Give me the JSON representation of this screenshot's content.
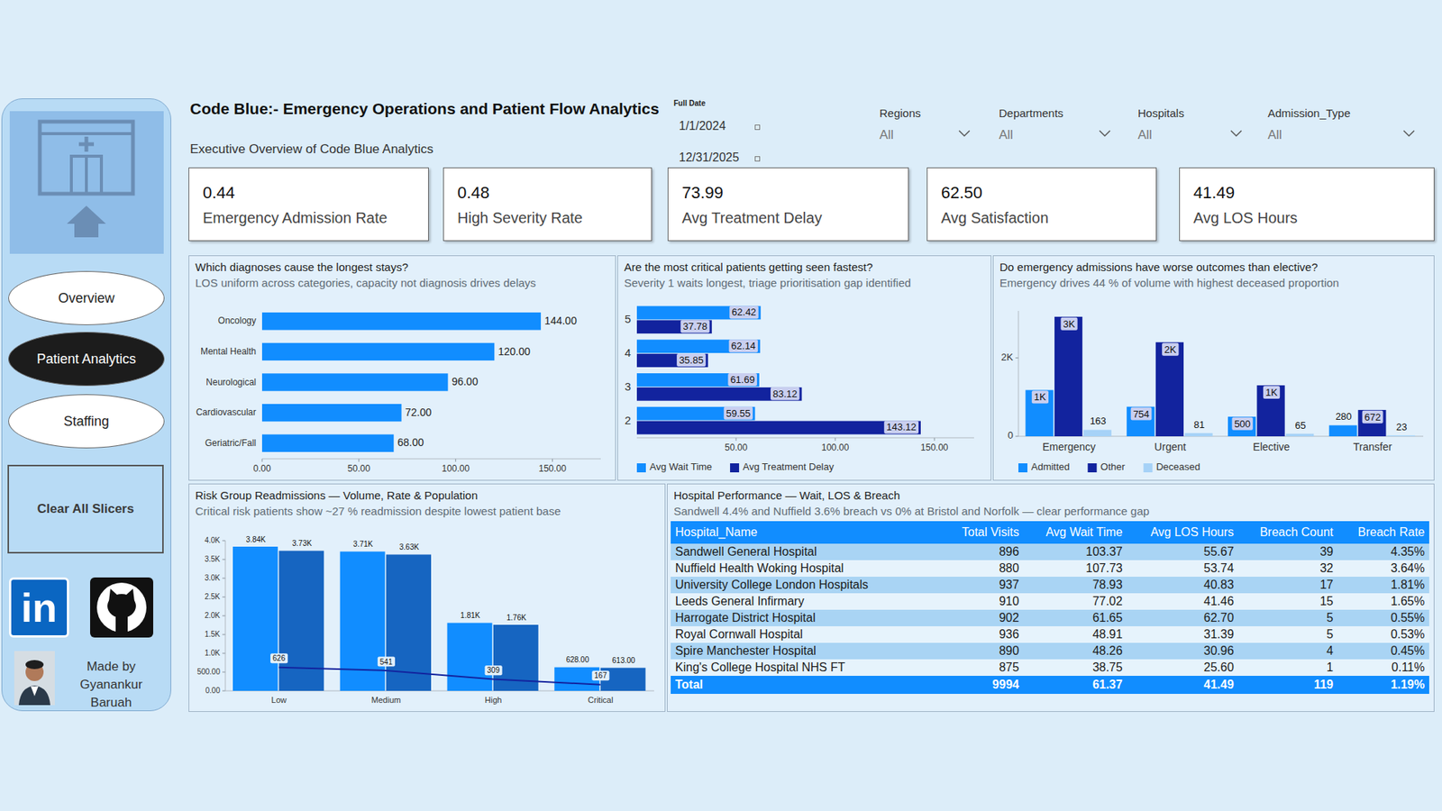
{
  "header": {
    "title": "Code Blue:- Emergency Operations and Patient Flow Analytics",
    "subtitle": "Executive Overview of Code Blue Analytics"
  },
  "navigation": {
    "buttons": [
      "Overview",
      "Patient Analytics",
      "Staffing"
    ],
    "active": 1,
    "clear_button": "Clear All Slicers",
    "linkedin_label": "in",
    "credit": "Made by Gyanankur Baruah"
  },
  "date_filter": {
    "label": "Full Date",
    "start": "1/1/2024",
    "end": "12/31/2025"
  },
  "slicers": [
    {
      "label": "Regions",
      "value": "All"
    },
    {
      "label": "Departments",
      "value": "All"
    },
    {
      "label": "Hospitals",
      "value": "All"
    },
    {
      "label": "Admission_Type",
      "value": "All"
    }
  ],
  "kpis": [
    {
      "value": "0.44",
      "label": "Emergency Admission Rate"
    },
    {
      "value": "0.48",
      "label": "High Severity Rate"
    },
    {
      "value": "73.99",
      "label": "Avg Treatment Delay"
    },
    {
      "value": "62.50",
      "label": "Avg Satisfaction"
    },
    {
      "value": "41.49",
      "label": "Avg LOS Hours"
    }
  ],
  "chart_data": [
    {
      "type": "bar",
      "orientation": "horizontal",
      "title": "Which diagnoses cause the longest stays?",
      "subtitle": "LOS uniform across categories, capacity not diagnosis drives delays",
      "categories": [
        "Oncology",
        "Mental Health",
        "Neurological",
        "Cardiovascular",
        "Geriatric/Fall"
      ],
      "values": [
        144,
        120,
        96,
        72,
        68
      ],
      "value_labels": [
        "144.00",
        "120.00",
        "96.00",
        "72.00",
        "68.00"
      ],
      "color": "#118dff",
      "xlim": [
        0,
        175
      ],
      "xticks": [
        {
          "value": 0,
          "label": "0.00"
        },
        {
          "value": 50,
          "label": "50.00"
        },
        {
          "value": 100,
          "label": "100.00"
        },
        {
          "value": 150,
          "label": "150.00"
        }
      ],
      "grid": false,
      "data_labels": true
    },
    {
      "type": "bar",
      "orientation": "horizontal",
      "title": "Are the most critical patients getting seen fastest?",
      "subtitle": "Severity 1 waits longest, triage prioritisation gap identified",
      "categories": [
        "5",
        "4",
        "3",
        "2"
      ],
      "series": [
        {
          "name": "Avg Wait Time",
          "color": "#118dff",
          "values": [
            62.42,
            62.14,
            61.69,
            59.55
          ]
        },
        {
          "name": "Avg Treatment Delay",
          "color": "#12239e",
          "values": [
            37.78,
            35.85,
            83.12,
            143.12
          ]
        }
      ],
      "xlim": [
        0,
        170
      ],
      "xticks": [
        {
          "value": 50,
          "label": "50.00"
        },
        {
          "value": 100,
          "label": "100.00"
        },
        {
          "value": 150,
          "label": "150.00"
        }
      ],
      "grid": false,
      "legend": "bottom",
      "data_labels": true
    },
    {
      "type": "bar",
      "title": "Do emergency admissions have worse outcomes than elective?",
      "subtitle": "Emergency drives 44 % of volume with highest deceased proportion",
      "categories": [
        "Emergency",
        "Urgent",
        "Elective",
        "Transfer"
      ],
      "series": [
        {
          "name": "Admitted",
          "color": "#118dff",
          "values": [
            1180,
            754,
            500,
            280
          ],
          "value_labels": [
            "1K",
            "754",
            "500",
            "280"
          ]
        },
        {
          "name": "Other",
          "color": "#12239e",
          "values": [
            3050,
            2400,
            1300,
            672
          ],
          "value_labels": [
            "3K",
            "2K",
            "1K",
            "672"
          ]
        },
        {
          "name": "Deceased",
          "color": "#a6d2f7",
          "values": [
            163,
            81,
            65,
            23
          ]
        }
      ],
      "ylim": [
        0,
        3200
      ],
      "yticks": [
        0,
        {
          "value": 2000,
          "label": "2K"
        }
      ],
      "grid": false,
      "legend": "bottom",
      "data_labels": true
    },
    {
      "type": "bar",
      "title": "Risk Group Readmissions — Volume, Rate & Population",
      "subtitle": "Critical risk patients show ~27 % readmission despite lowest patient base",
      "categories": [
        "Low",
        "Medium",
        "High",
        "Critical"
      ],
      "series": [
        {
          "color": "#118dff",
          "values": [
            3840,
            3710,
            1810,
            628
          ],
          "value_labels": [
            "3.84K",
            "3.71K",
            "1.81K",
            "628.00"
          ]
        },
        {
          "color": "#1665c1",
          "values": [
            3730,
            3630,
            1760,
            613
          ],
          "value_labels": [
            "3.73K",
            "3.63K",
            "1.76K",
            "613.00"
          ]
        },
        {
          "type": "line",
          "color": "#12239e",
          "values": [
            626,
            541,
            309,
            167
          ]
        }
      ],
      "ylim": [
        0,
        4000
      ],
      "yticks": [
        {
          "value": 0,
          "label": "0.00"
        },
        {
          "value": 500,
          "label": "500.00"
        },
        {
          "value": 1000,
          "label": "1.0K"
        },
        {
          "value": 1500,
          "label": "1.5K"
        },
        {
          "value": 2000,
          "label": "2.0K"
        },
        {
          "value": 2500,
          "label": "2.5K"
        },
        {
          "value": 3000,
          "label": "3.0K"
        },
        {
          "value": 3500,
          "label": "3.5K"
        },
        {
          "value": 4000,
          "label": "4.0K"
        }
      ],
      "grid": false,
      "data_labels": true
    }
  ],
  "table": {
    "title": "Hospital Performance — Wait, LOS & Breach",
    "subtitle": "Sandwell 4.4% and Nuffield 3.6% breach vs 0% at Bristol and Norfolk — clear performance gap",
    "columns": [
      "Hospital_Name",
      "Total Visits",
      "Avg Wait Time",
      "Avg LOS Hours",
      "Breach Count",
      "Breach Rate"
    ],
    "rows": [
      [
        "Sandwell General Hospital",
        "896",
        "103.37",
        "55.67",
        "39",
        "4.35%"
      ],
      [
        "Nuffield Health Woking Hospital",
        "880",
        "107.73",
        "53.74",
        "32",
        "3.64%"
      ],
      [
        "University College London Hospitals",
        "937",
        "78.93",
        "40.83",
        "17",
        "1.81%"
      ],
      [
        "Leeds General Infirmary",
        "910",
        "77.02",
        "41.46",
        "15",
        "1.65%"
      ],
      [
        "Harrogate District Hospital",
        "902",
        "61.65",
        "62.70",
        "5",
        "0.55%"
      ],
      [
        "Royal Cornwall Hospital",
        "936",
        "48.91",
        "31.39",
        "5",
        "0.53%"
      ],
      [
        "Spire Manchester Hospital",
        "890",
        "48.26",
        "30.96",
        "4",
        "0.45%"
      ],
      [
        "King's College Hospital NHS FT",
        "875",
        "38.75",
        "25.60",
        "1",
        "0.11%"
      ]
    ],
    "total": [
      "Total",
      "9994",
      "61.37",
      "41.49",
      "119",
      "1.19%"
    ]
  }
}
